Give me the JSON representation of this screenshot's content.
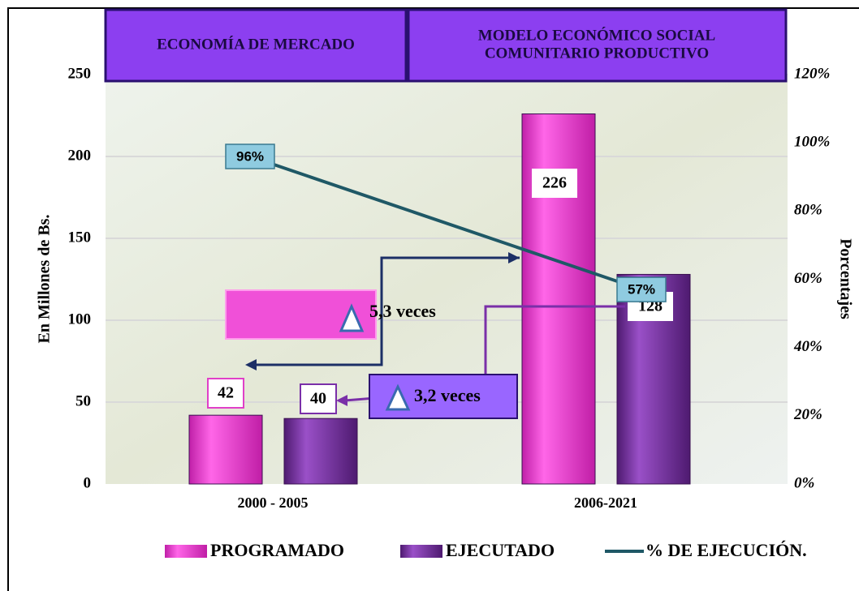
{
  "chart_data": {
    "type": "bar",
    "header": [
      [
        "ECONOMÍA DE MERCADO"
      ],
      [
        "MODELO ECONÓMICO SOCIAL",
        "COMUNITARIO PRODUCTIVO"
      ]
    ],
    "categories": [
      "2000 - 2005",
      "2006-2021"
    ],
    "series": [
      {
        "name": "PROGRAMADO",
        "color": "#f03cd2",
        "values": [
          42,
          226
        ]
      },
      {
        "name": "EJECUTADO",
        "color": "#7a2fa8",
        "values": [
          40,
          128
        ]
      },
      {
        "name": "% DE EJECUCIÓN.",
        "type": "line",
        "axis": "y2",
        "color": "#1f5866",
        "values": [
          96,
          57
        ],
        "value_labels": [
          "96%",
          "57%"
        ]
      }
    ],
    "ylabel": "En Millones de Bs.",
    "y2label": "Porcentajes",
    "ylim": [
      0,
      250
    ],
    "yticks": [
      0,
      50,
      100,
      150,
      200,
      250
    ],
    "y2lim": [
      0,
      120
    ],
    "y2ticks": [
      {
        "value": 0,
        "label": "0%"
      },
      {
        "value": 20,
        "label": "20%"
      },
      {
        "value": 40,
        "label": "40%"
      },
      {
        "value": 60,
        "label": "60%"
      },
      {
        "value": 80,
        "label": "80%"
      },
      {
        "value": 100,
        "label": "100%"
      },
      {
        "value": 120,
        "label": "120%"
      }
    ],
    "grid": true,
    "annotations": [
      "5,3 veces",
      "3,2 veces"
    ]
  }
}
